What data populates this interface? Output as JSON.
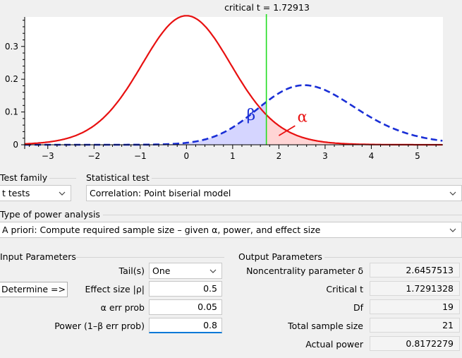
{
  "chart_data": {
    "type": "line",
    "title": "critical t =  1.72913",
    "xlim": [
      -3.5,
      5.55
    ],
    "ylim": [
      0,
      0.39
    ],
    "x_ticks": [
      -3,
      -2,
      -1,
      0,
      1,
      2,
      3,
      4,
      5
    ],
    "y_ticks": [
      0,
      0.1,
      0.2,
      0.3
    ],
    "y_tick_labels": [
      "0",
      "0.1",
      "0.2",
      "0.3"
    ],
    "series": [
      {
        "distribution": "central t",
        "df": 19,
        "noncentrality": 0,
        "color": "#e81010",
        "style": "solid"
      },
      {
        "distribution": "noncentral t",
        "df": 19,
        "noncentrality": 2.6457513,
        "color": "#1a2fd6",
        "style": "dashed"
      }
    ],
    "critical_line": {
      "x": 1.72913,
      "color": "#22dd22"
    },
    "annotations": [
      {
        "text": "β",
        "color": "#1a2fd6"
      },
      {
        "text": "α",
        "color": "#e81010"
      }
    ]
  },
  "test_family": {
    "label": "Test family",
    "value": "t tests"
  },
  "statistical_test": {
    "label": "Statistical test",
    "value": "Correlation: Point biserial model"
  },
  "power_analysis": {
    "label": "Type of power analysis",
    "value": "A priori: Compute required sample size – given α, power, and effect size"
  },
  "input": {
    "title": "Input Parameters",
    "tails_label": "Tail(s)",
    "tails_value": "One",
    "determine_label": "Determine =>",
    "effect_label": "Effect size |ρ|",
    "effect_value": "0.5",
    "alpha_label": "α err prob",
    "alpha_value": "0.05",
    "power_label": "Power (1–β err prob)",
    "power_value": "0.8"
  },
  "output": {
    "title": "Output Parameters",
    "rows": [
      {
        "label": "Noncentrality parameter δ",
        "value": "2.6457513"
      },
      {
        "label": "Critical t",
        "value": "1.7291328"
      },
      {
        "label": "Df",
        "value": "19"
      },
      {
        "label": "Total sample size",
        "value": "21"
      },
      {
        "label": "Actual power",
        "value": "0.8172279"
      }
    ]
  }
}
